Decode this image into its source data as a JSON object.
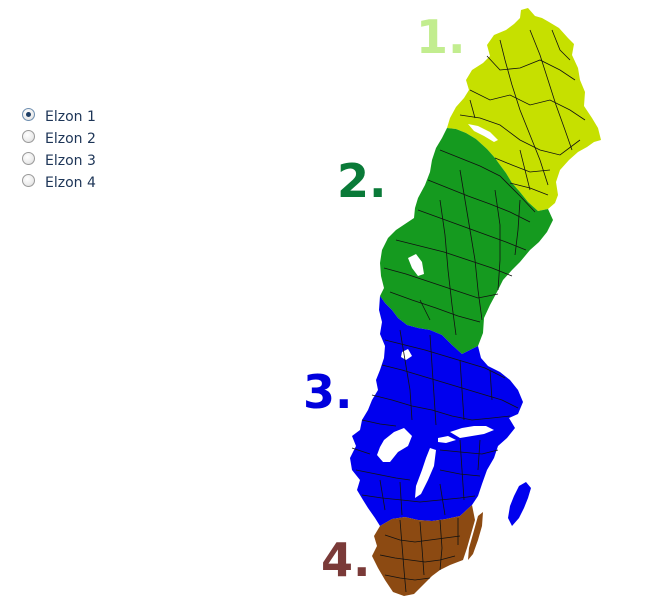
{
  "zone_selector": {
    "options": [
      {
        "label": "Elzon 1",
        "checked": true
      },
      {
        "label": "Elzon 2",
        "checked": false
      },
      {
        "label": "Elzon 3",
        "checked": false
      },
      {
        "label": "Elzon 4",
        "checked": false
      }
    ]
  },
  "map": {
    "zones": [
      {
        "number_label": "1.",
        "fill_color": "#c6e000",
        "number_color": "#c2ed8f"
      },
      {
        "number_label": "2.",
        "fill_color": "#159a1f",
        "number_color": "#0a7a38"
      },
      {
        "number_label": "3.",
        "fill_color": "#0000ee",
        "number_color": "#0000dd"
      },
      {
        "number_label": "4.",
        "fill_color": "#8c4a12",
        "number_color": "#7a3a38"
      }
    ],
    "water_color": "#ffffff",
    "border_color": "#111111"
  }
}
